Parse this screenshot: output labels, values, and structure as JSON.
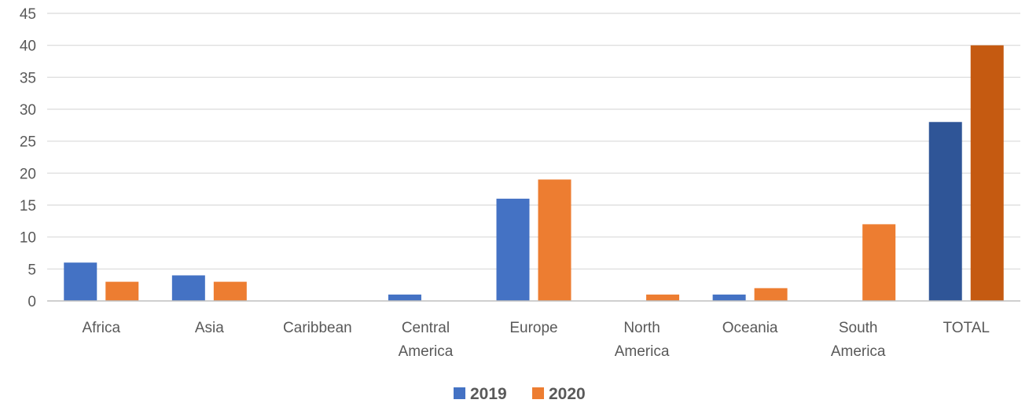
{
  "chart_data": {
    "type": "bar",
    "categories": [
      [
        "Africa"
      ],
      [
        "Asia"
      ],
      [
        "Caribbean"
      ],
      [
        "Central",
        "America"
      ],
      [
        "Europe"
      ],
      [
        "North",
        "America"
      ],
      [
        "Oceania"
      ],
      [
        "South",
        "America"
      ],
      [
        "TOTAL"
      ]
    ],
    "series": [
      {
        "name": "2019",
        "color": "#4472C4",
        "highlight_color": "#2F5597",
        "values": [
          6,
          4,
          0,
          1,
          16,
          0,
          1,
          0,
          28
        ]
      },
      {
        "name": "2020",
        "color": "#ED7D31",
        "highlight_color": "#C55A11",
        "values": [
          3,
          3,
          0,
          0,
          19,
          1,
          2,
          12,
          40
        ]
      }
    ],
    "highlight_category_index": 8,
    "ylim": [
      0,
      45
    ],
    "yticks": [
      0,
      5,
      10,
      15,
      20,
      25,
      30,
      35,
      40,
      45
    ],
    "grid": true,
    "legend_position": "bottom",
    "title": "",
    "xlabel": "",
    "ylabel": ""
  }
}
